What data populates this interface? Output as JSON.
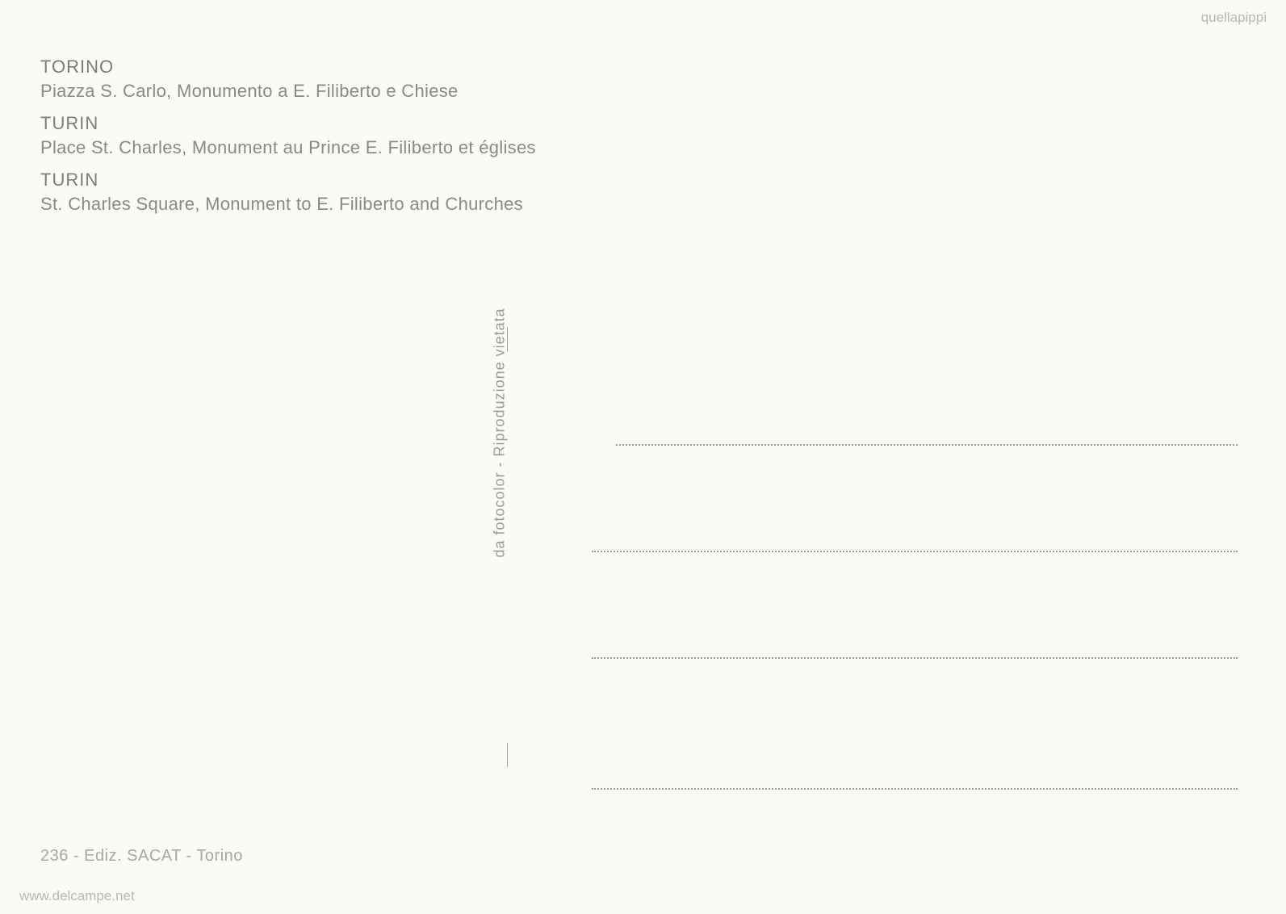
{
  "captions": [
    {
      "title": "TORINO",
      "desc": "Piazza S. Carlo, Monumento a E. Filiberto e Chiese"
    },
    {
      "title": "TURIN",
      "desc": "Place St. Charles, Monument au Prince E. Filiberto et églises"
    },
    {
      "title": "TURIN",
      "desc": "St. Charles Square, Monument to E. Filiberto and Churches"
    }
  ],
  "divider_text": "da fotocolor - Riproduzione vietata",
  "publisher": "236 - Ediz. SACAT - Torino",
  "watermark_domain": "www.delcampe.net",
  "watermark_user": "quellapippi",
  "colors": {
    "background": "#fbfaf6",
    "text_primary": "#7d7c76",
    "text_secondary": "#8a8982",
    "text_muted": "#9c9b93",
    "text_light": "#a9a8a0",
    "watermark": "#b8b7b0"
  },
  "layout": {
    "caption_title_fontsize": 22,
    "caption_desc_fontsize": 22,
    "vertical_text_fontsize": 18,
    "publisher_fontsize": 20,
    "watermark_fontsize": 17,
    "address_line_count": 4,
    "address_line_spacing": 130
  }
}
